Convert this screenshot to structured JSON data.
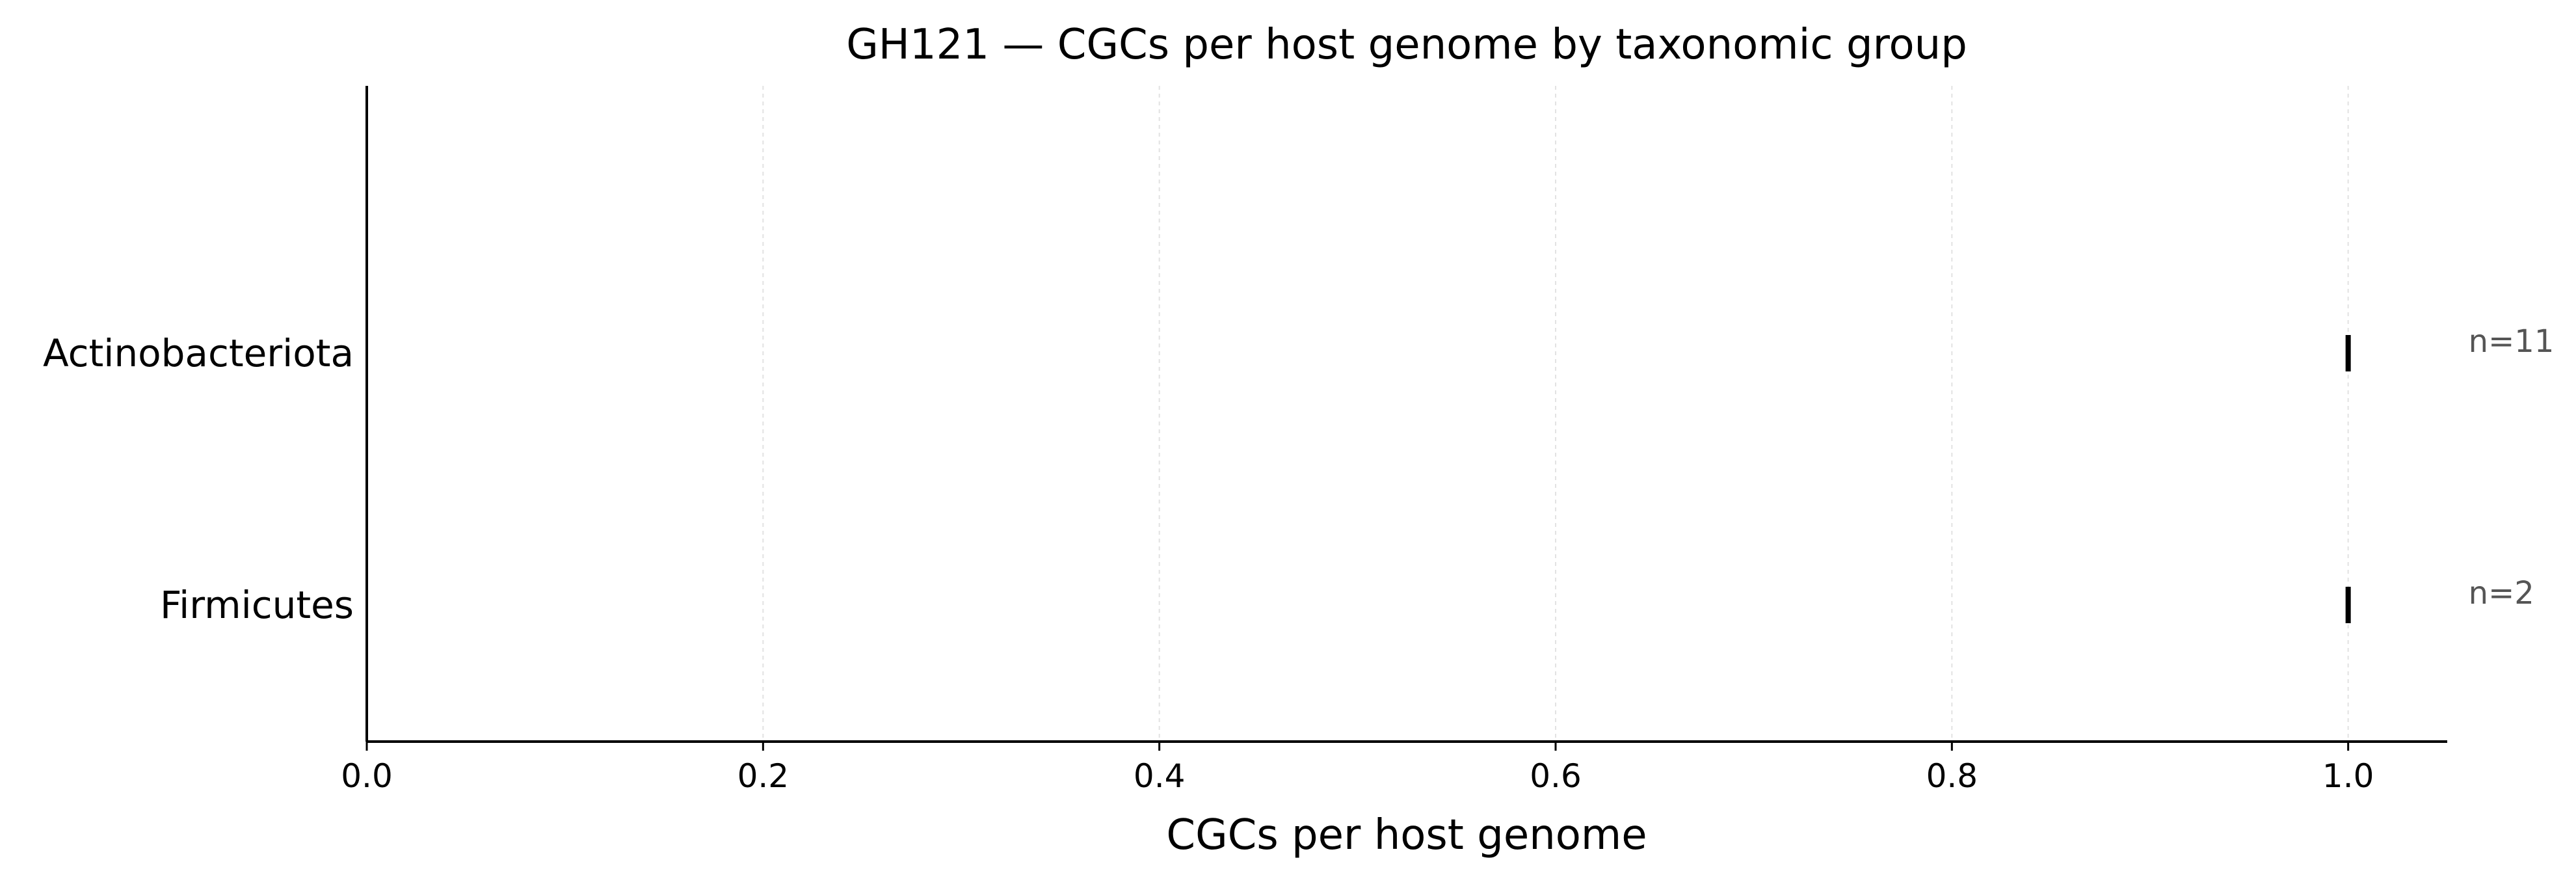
{
  "chart_data": {
    "type": "scatter",
    "title": "GH121 — CGCs per host genome by taxonomic group",
    "xlabel": "CGCs per host genome",
    "ylabel": "",
    "xlim": [
      0,
      1.05
    ],
    "xticks": [
      0.0,
      0.2,
      0.4,
      0.6,
      0.8,
      1.0
    ],
    "xtick_labels": [
      "0.0",
      "0.2",
      "0.4",
      "0.6",
      "0.8",
      "1.0"
    ],
    "grid": "x-dashed",
    "categories": [
      "Actinobacteriota",
      "Firmicutes"
    ],
    "points": [
      {
        "category": "Actinobacteriota",
        "value": 1.0,
        "n_label": "n=11"
      },
      {
        "category": "Firmicutes",
        "value": 1.0,
        "n_label": "n=2"
      }
    ]
  }
}
